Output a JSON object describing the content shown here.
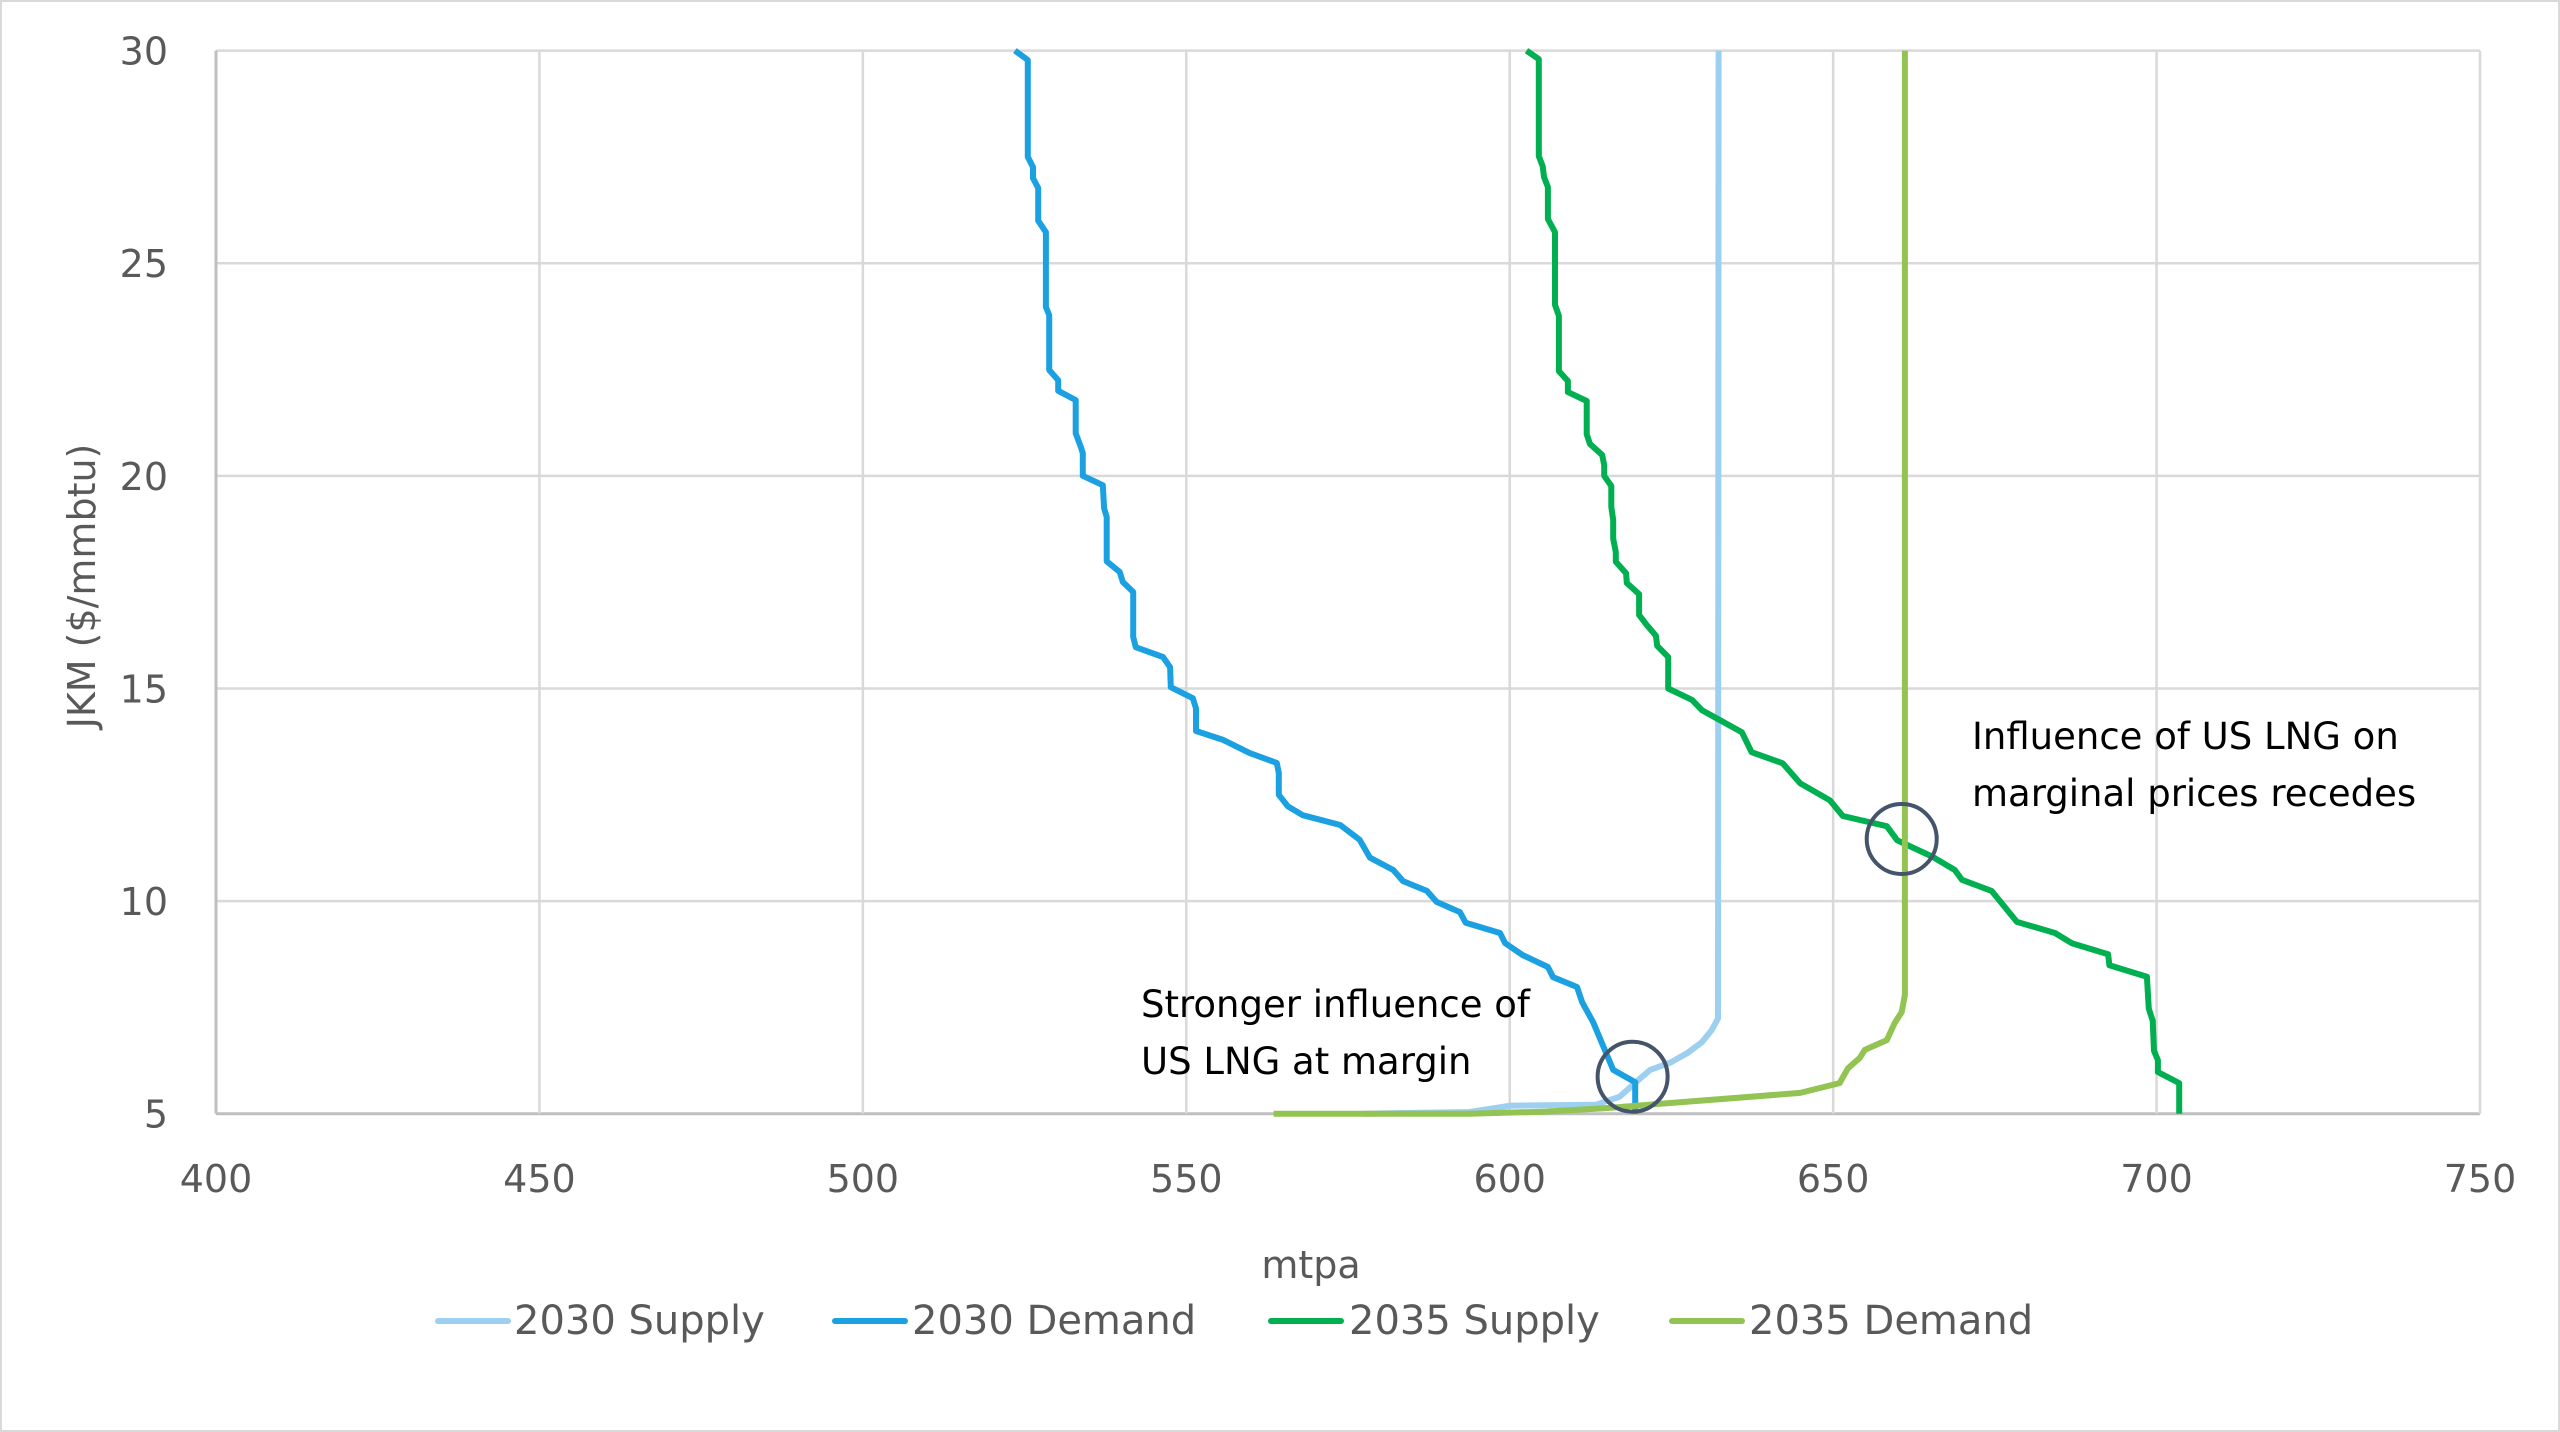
{
  "chart_data": {
    "type": "line",
    "title": "",
    "xlabel": "mtpa",
    "ylabel": "JKM ($/mmbtu)",
    "xlim": [
      400,
      750
    ],
    "ylim": [
      5,
      30
    ],
    "xticks": [
      "400",
      "450",
      "500",
      "550",
      "600",
      "650",
      "700",
      "750"
    ],
    "yticks": [
      "5",
      "10",
      "15",
      "20",
      "25",
      "30"
    ],
    "grid": true,
    "legend_position": "bottom",
    "series": [
      {
        "name": "2030 Supply",
        "color": "#9dcff0",
        "points": [
          [
            577.3,
            5.0
          ],
          [
            593.8,
            5.04
          ],
          [
            600.2,
            5.19
          ],
          [
            613.3,
            5.21
          ],
          [
            617.0,
            5.4
          ],
          [
            619.8,
            5.78
          ],
          [
            621.7,
            6.03
          ],
          [
            624.8,
            6.2
          ],
          [
            627.4,
            6.42
          ],
          [
            629.7,
            6.68
          ],
          [
            631.2,
            6.96
          ],
          [
            632.2,
            7.24
          ],
          [
            632.3,
            30.0
          ]
        ]
      },
      {
        "name": "2030 Demand",
        "color": "#1ba1e2",
        "points": [
          [
            523.5,
            30.0
          ],
          [
            525.5,
            29.78
          ],
          [
            525.5,
            27.5
          ],
          [
            526.3,
            27.26
          ],
          [
            526.3,
            27.0
          ],
          [
            527.1,
            26.77
          ],
          [
            527.1,
            26.0
          ],
          [
            528.3,
            25.73
          ],
          [
            528.3,
            23.97
          ],
          [
            528.8,
            23.78
          ],
          [
            528.8,
            22.49
          ],
          [
            530.2,
            22.25
          ],
          [
            530.2,
            22.0
          ],
          [
            532.9,
            21.78
          ],
          [
            532.9,
            21.0
          ],
          [
            533.7,
            20.68
          ],
          [
            534.0,
            20.53
          ],
          [
            534.0,
            20.0
          ],
          [
            537.1,
            19.78
          ],
          [
            537.3,
            19.24
          ],
          [
            537.7,
            19.03
          ],
          [
            537.7,
            17.99
          ],
          [
            539.7,
            17.74
          ],
          [
            540.2,
            17.5
          ],
          [
            541.8,
            17.27
          ],
          [
            541.8,
            16.21
          ],
          [
            542.2,
            15.97
          ],
          [
            546.4,
            15.74
          ],
          [
            547.5,
            15.5
          ],
          [
            547.6,
            15.03
          ],
          [
            551.0,
            14.77
          ],
          [
            551.5,
            14.53
          ],
          [
            551.5,
            14.0
          ],
          [
            555.7,
            13.79
          ],
          [
            559.8,
            13.48
          ],
          [
            564.0,
            13.25
          ],
          [
            564.3,
            13.01
          ],
          [
            564.3,
            12.5
          ],
          [
            565.7,
            12.23
          ],
          [
            568.0,
            12.02
          ],
          [
            573.8,
            11.79
          ],
          [
            576.8,
            11.44
          ],
          [
            578.4,
            11.02
          ],
          [
            582.0,
            10.73
          ],
          [
            583.5,
            10.47
          ],
          [
            587.2,
            10.24
          ],
          [
            588.7,
            9.98
          ],
          [
            592.3,
            9.74
          ],
          [
            593.2,
            9.49
          ],
          [
            598.5,
            9.25
          ],
          [
            599.3,
            9.01
          ],
          [
            602.0,
            8.73
          ],
          [
            605.9,
            8.45
          ],
          [
            606.7,
            8.21
          ],
          [
            610.4,
            7.98
          ],
          [
            611.2,
            7.62
          ],
          [
            612.9,
            7.15
          ],
          [
            616.0,
            6.03
          ],
          [
            619.4,
            5.74
          ],
          [
            619.4,
            5.0
          ]
        ]
      },
      {
        "name": "2035 Supply",
        "color": "#00b050",
        "points": [
          [
            602.6,
            30.0
          ],
          [
            604.5,
            29.8
          ],
          [
            604.5,
            27.52
          ],
          [
            605.1,
            27.28
          ],
          [
            605.3,
            27.03
          ],
          [
            605.9,
            26.79
          ],
          [
            605.9,
            26.04
          ],
          [
            607.0,
            25.73
          ],
          [
            607.0,
            24.02
          ],
          [
            607.6,
            23.76
          ],
          [
            607.6,
            22.46
          ],
          [
            609.0,
            22.23
          ],
          [
            609.0,
            21.97
          ],
          [
            611.9,
            21.76
          ],
          [
            611.9,
            20.98
          ],
          [
            612.4,
            20.75
          ],
          [
            614.3,
            20.49
          ],
          [
            614.6,
            20.25
          ],
          [
            614.6,
            20.0
          ],
          [
            615.7,
            19.76
          ],
          [
            615.7,
            19.27
          ],
          [
            616.0,
            18.96
          ],
          [
            616.0,
            18.52
          ],
          [
            616.4,
            18.21
          ],
          [
            616.4,
            17.98
          ],
          [
            618.0,
            17.71
          ],
          [
            618.1,
            17.48
          ],
          [
            620.0,
            17.22
          ],
          [
            620.0,
            16.73
          ],
          [
            621.2,
            16.49
          ],
          [
            622.6,
            16.24
          ],
          [
            622.8,
            16.0
          ],
          [
            624.5,
            15.74
          ],
          [
            624.5,
            15.0
          ],
          [
            628.2,
            14.73
          ],
          [
            629.7,
            14.49
          ],
          [
            635.9,
            13.97
          ],
          [
            637.4,
            13.5
          ],
          [
            642.2,
            13.24
          ],
          [
            644.9,
            12.77
          ],
          [
            649.5,
            12.37
          ],
          [
            651.5,
            12.0
          ],
          [
            658.3,
            11.76
          ],
          [
            659.9,
            11.43
          ],
          [
            665.4,
            11.04
          ],
          [
            668.8,
            10.73
          ],
          [
            669.9,
            10.5
          ],
          [
            674.5,
            10.24
          ],
          [
            678.4,
            9.51
          ],
          [
            684.3,
            9.25
          ],
          [
            686.9,
            9.01
          ],
          [
            692.5,
            8.75
          ],
          [
            692.7,
            8.49
          ],
          [
            698.5,
            8.22
          ],
          [
            698.8,
            7.47
          ],
          [
            699.4,
            7.19
          ],
          [
            699.6,
            6.48
          ],
          [
            700.2,
            6.26
          ],
          [
            700.2,
            5.98
          ],
          [
            703.5,
            5.72
          ],
          [
            703.5,
            5.0
          ]
        ]
      },
      {
        "name": "2035 Demand",
        "color": "#92c353",
        "points": [
          [
            563.5,
            5.0
          ],
          [
            593.8,
            5.0
          ],
          [
            605.6,
            5.05
          ],
          [
            614.6,
            5.13
          ],
          [
            644.9,
            5.49
          ],
          [
            651.0,
            5.72
          ],
          [
            652.3,
            6.07
          ],
          [
            654.1,
            6.31
          ],
          [
            654.9,
            6.5
          ],
          [
            658.3,
            6.73
          ],
          [
            659.5,
            7.13
          ],
          [
            660.6,
            7.39
          ],
          [
            661.1,
            7.79
          ],
          [
            661.1,
            30.0
          ]
        ]
      }
    ],
    "annotations": [
      {
        "lines": [
          "Stronger influence of",
          "US LNG at margin"
        ],
        "circle_at": [
          619.0,
          5.87
        ]
      },
      {
        "lines": [
          "Influence of US LNG on",
          "marginal prices recedes"
        ],
        "circle_at": [
          660.6,
          11.46
        ]
      }
    ],
    "annotation_circle_color": "#44546a"
  }
}
